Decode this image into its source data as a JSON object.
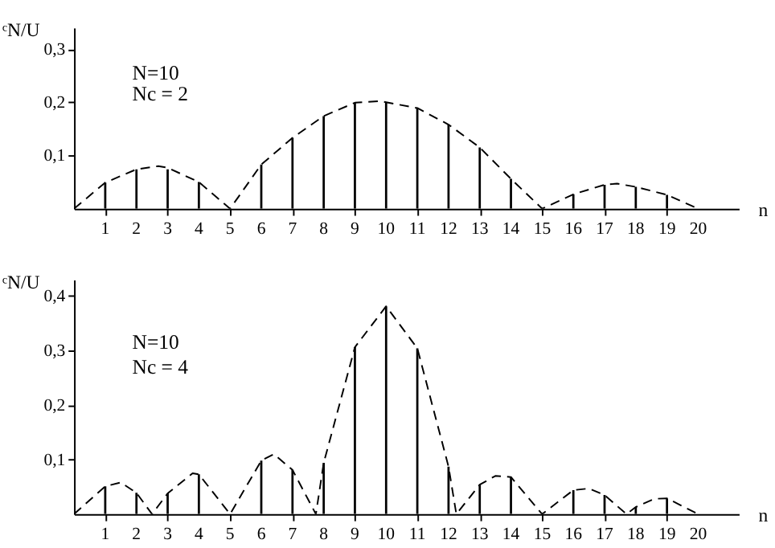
{
  "chart_data": [
    {
      "type": "bar",
      "ylabel": "ᶜN/U",
      "xlabel": "n",
      "xlim": [
        0,
        21.3
      ],
      "ylim": [
        0,
        0.34
      ],
      "xticks": [
        1,
        2,
        3,
        4,
        5,
        6,
        7,
        8,
        9,
        10,
        11,
        12,
        13,
        14,
        15,
        16,
        17,
        18,
        19,
        20
      ],
      "yticks": [
        {
          "value": 0.1,
          "label": "0,1"
        },
        {
          "value": 0.2,
          "label": "0,2"
        },
        {
          "value": 0.3,
          "label": "0,3"
        }
      ],
      "grid": false,
      "annotations": [
        "N=10",
        "Nc = 2"
      ],
      "series": [
        {
          "color": "#000000",
          "x": [
            1,
            2,
            3,
            4,
            5,
            6,
            7,
            8,
            9,
            10,
            11,
            12,
            13,
            14,
            15,
            16,
            17,
            18,
            19,
            20
          ],
          "values": [
            0.049,
            0.074,
            0.074,
            0.05,
            0,
            0.083,
            0.133,
            0.174,
            0.199,
            0.2,
            0.189,
            0.158,
            0.115,
            0.056,
            0,
            0.027,
            0.045,
            0.041,
            0.026,
            0
          ]
        },
        {
          "type": "line",
          "line_style": "dashed",
          "color": "#000000",
          "x": [
            0,
            1,
            2,
            2.7,
            3,
            4,
            5,
            6,
            7,
            8,
            9,
            9.8,
            11,
            12,
            13,
            14,
            15,
            16,
            17,
            17.4,
            18,
            19,
            20
          ],
          "values": [
            0,
            0.049,
            0.074,
            0.08,
            0.077,
            0.05,
            0,
            0.083,
            0.133,
            0.174,
            0.199,
            0.202,
            0.189,
            0.158,
            0.115,
            0.056,
            0,
            0.027,
            0.045,
            0.047,
            0.041,
            0.026,
            0
          ]
        }
      ]
    },
    {
      "type": "bar",
      "ylabel": "ᶜN/U",
      "xlabel": "n",
      "xlim": [
        0,
        21.3
      ],
      "ylim": [
        0,
        0.43
      ],
      "xticks": [
        1,
        2,
        3,
        4,
        5,
        6,
        7,
        8,
        9,
        10,
        11,
        12,
        13,
        14,
        15,
        16,
        17,
        18,
        19,
        20
      ],
      "yticks": [
        {
          "value": 0.1,
          "label": "0,1"
        },
        {
          "value": 0.2,
          "label": "0,2"
        },
        {
          "value": 0.3,
          "label": "0,3"
        },
        {
          "value": 0.4,
          "label": "0,4"
        }
      ],
      "grid": false,
      "annotations": [
        "N=10",
        "Nc = 4"
      ],
      "series": [
        {
          "color": "#000000",
          "x": [
            1,
            2,
            3,
            4,
            5,
            6,
            7,
            8,
            9,
            10,
            11,
            12,
            13,
            14,
            15,
            16,
            17,
            18,
            19,
            20
          ],
          "values": [
            0.051,
            0.039,
            0.038,
            0.073,
            0,
            0.098,
            0.081,
            0.094,
            0.306,
            0.381,
            0.304,
            0.087,
            0.054,
            0.068,
            0,
            0.044,
            0.035,
            0.013,
            0.029,
            0
          ]
        },
        {
          "type": "line",
          "line_style": "dashed",
          "color": "#000000",
          "x": [
            0,
            1,
            1.5,
            2,
            2.5,
            3,
            3.8,
            4,
            5,
            6,
            6.4,
            7,
            7.75,
            8,
            9,
            10,
            11,
            12,
            12.25,
            13,
            13.5,
            14,
            15,
            16,
            16.5,
            17,
            17.7,
            18,
            18.6,
            19,
            20
          ],
          "values": [
            0,
            0.051,
            0.058,
            0.039,
            0,
            0.038,
            0.075,
            0.073,
            0,
            0.098,
            0.11,
            0.081,
            0,
            0.094,
            0.306,
            0.381,
            0.304,
            0.087,
            0,
            0.054,
            0.07,
            0.068,
            0,
            0.044,
            0.047,
            0.035,
            0,
            0.013,
            0.028,
            0.029,
            0
          ]
        }
      ]
    }
  ]
}
